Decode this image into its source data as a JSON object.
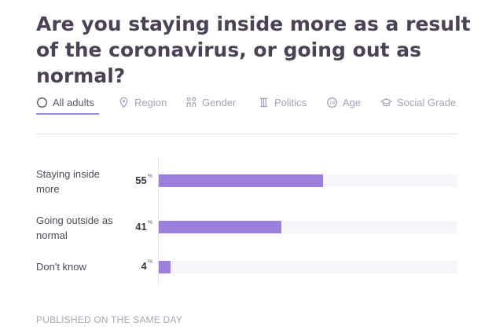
{
  "title": "Are you staying inside more as a result of the coronavirus, or going out as normal?",
  "tabs": [
    {
      "label": "All adults",
      "icon": "circle-icon"
    },
    {
      "label": "Region",
      "icon": "map-pin-icon"
    },
    {
      "label": "Gender",
      "icon": "gender-icon"
    },
    {
      "label": "Politics",
      "icon": "pillar-icon"
    },
    {
      "label": "Age",
      "icon": "age-icon"
    },
    {
      "label": "Social Grade",
      "icon": "graduation-cap-icon"
    }
  ],
  "active_tab": "All adults",
  "chart_data": {
    "type": "bar",
    "orientation": "horizontal",
    "categories": [
      "Staying inside more",
      "Going outside as normal",
      "Don't know"
    ],
    "values": [
      55,
      41,
      4
    ],
    "unit": "%",
    "xlim": [
      0,
      100
    ],
    "bar_color": "#9b7fdb"
  },
  "footer": "PUBLISHED ON THE SAME DAY"
}
